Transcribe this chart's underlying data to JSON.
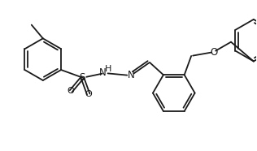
{
  "bg_color": "#ffffff",
  "line_color": "#1a1a1a",
  "lw": 1.3,
  "figsize": [
    3.16,
    1.86
  ],
  "dpi": 100,
  "xlim": [
    0,
    3.16
  ],
  "ylim": [
    0,
    1.86
  ],
  "ring_r": 0.26,
  "dbl_off": 0.035
}
